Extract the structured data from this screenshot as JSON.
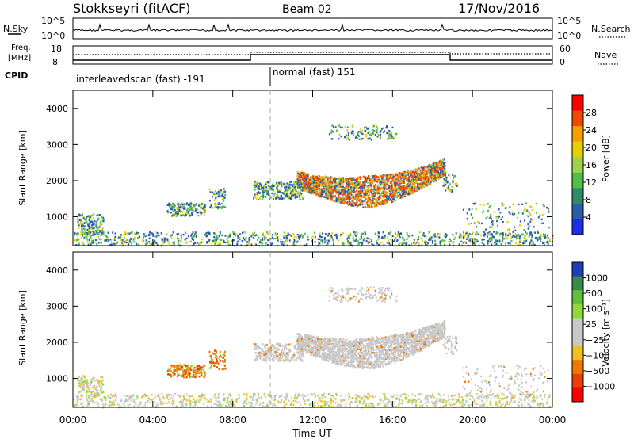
{
  "header": {
    "station": "Stokkseyri (fitACF)",
    "beam": "Beam 02",
    "date": "17/Nov/2016"
  },
  "status_panels": {
    "nsky": {
      "label": "N.Sky",
      "ticks": [
        "10^5",
        "10^0"
      ],
      "right_ticks": [
        "10^5",
        "10^0"
      ],
      "right_label": "N.Search"
    },
    "freq": {
      "label_line1": "Freq.",
      "label_line2": "[MHz]",
      "ticks": [
        "18",
        "8"
      ],
      "right_ticks": [
        "60",
        "0"
      ],
      "right_label": "Nave"
    },
    "cpid": {
      "label": "CPID",
      "segments": [
        "interleavedscan (fast) -191",
        "normal (fast) 151"
      ]
    }
  },
  "chart_data": [
    {
      "type": "heatmap",
      "name": "power",
      "ylabel": "Slant Range [km]",
      "y_ticks": [
        1000,
        2000,
        3000,
        4000
      ],
      "ylim": [
        200,
        4500
      ],
      "xlim_hours": [
        0,
        24
      ],
      "colorbar": {
        "label": "Power [dB]",
        "ticks": [
          "28",
          "24",
          "20",
          "16",
          "12",
          "8",
          "4"
        ],
        "colors": [
          "#ff0000",
          "#f04a00",
          "#f5a000",
          "#e7d000",
          "#9ed24a",
          "#4fbf46",
          "#2f8a6a",
          "#2a5fa8",
          "#1e2fe8"
        ]
      }
    },
    {
      "type": "heatmap",
      "name": "velocity",
      "ylabel": "Slant Range [km]",
      "y_ticks": [
        1000,
        2000,
        3000,
        4000
      ],
      "ylim": [
        200,
        4500
      ],
      "xlim_hours": [
        0,
        24
      ],
      "colorbar": {
        "label": "Velocity [m s⁻¹]",
        "ticks": [
          "1000",
          "500",
          "100",
          "25",
          "−25",
          "−100",
          "−500",
          "−1000"
        ],
        "colors": [
          "#1e3fb8",
          "#3a8a4e",
          "#5fbf3a",
          "#8fd93a",
          "#c8c8c8",
          "#c8c8c8",
          "#f0c020",
          "#f07800",
          "#e84000",
          "#ff0000"
        ]
      }
    }
  ],
  "x_axis": {
    "ticks": [
      "00:00",
      "04:00",
      "08:00",
      "12:00",
      "16:00",
      "20:00",
      "00:00"
    ],
    "label": "Time UT"
  }
}
